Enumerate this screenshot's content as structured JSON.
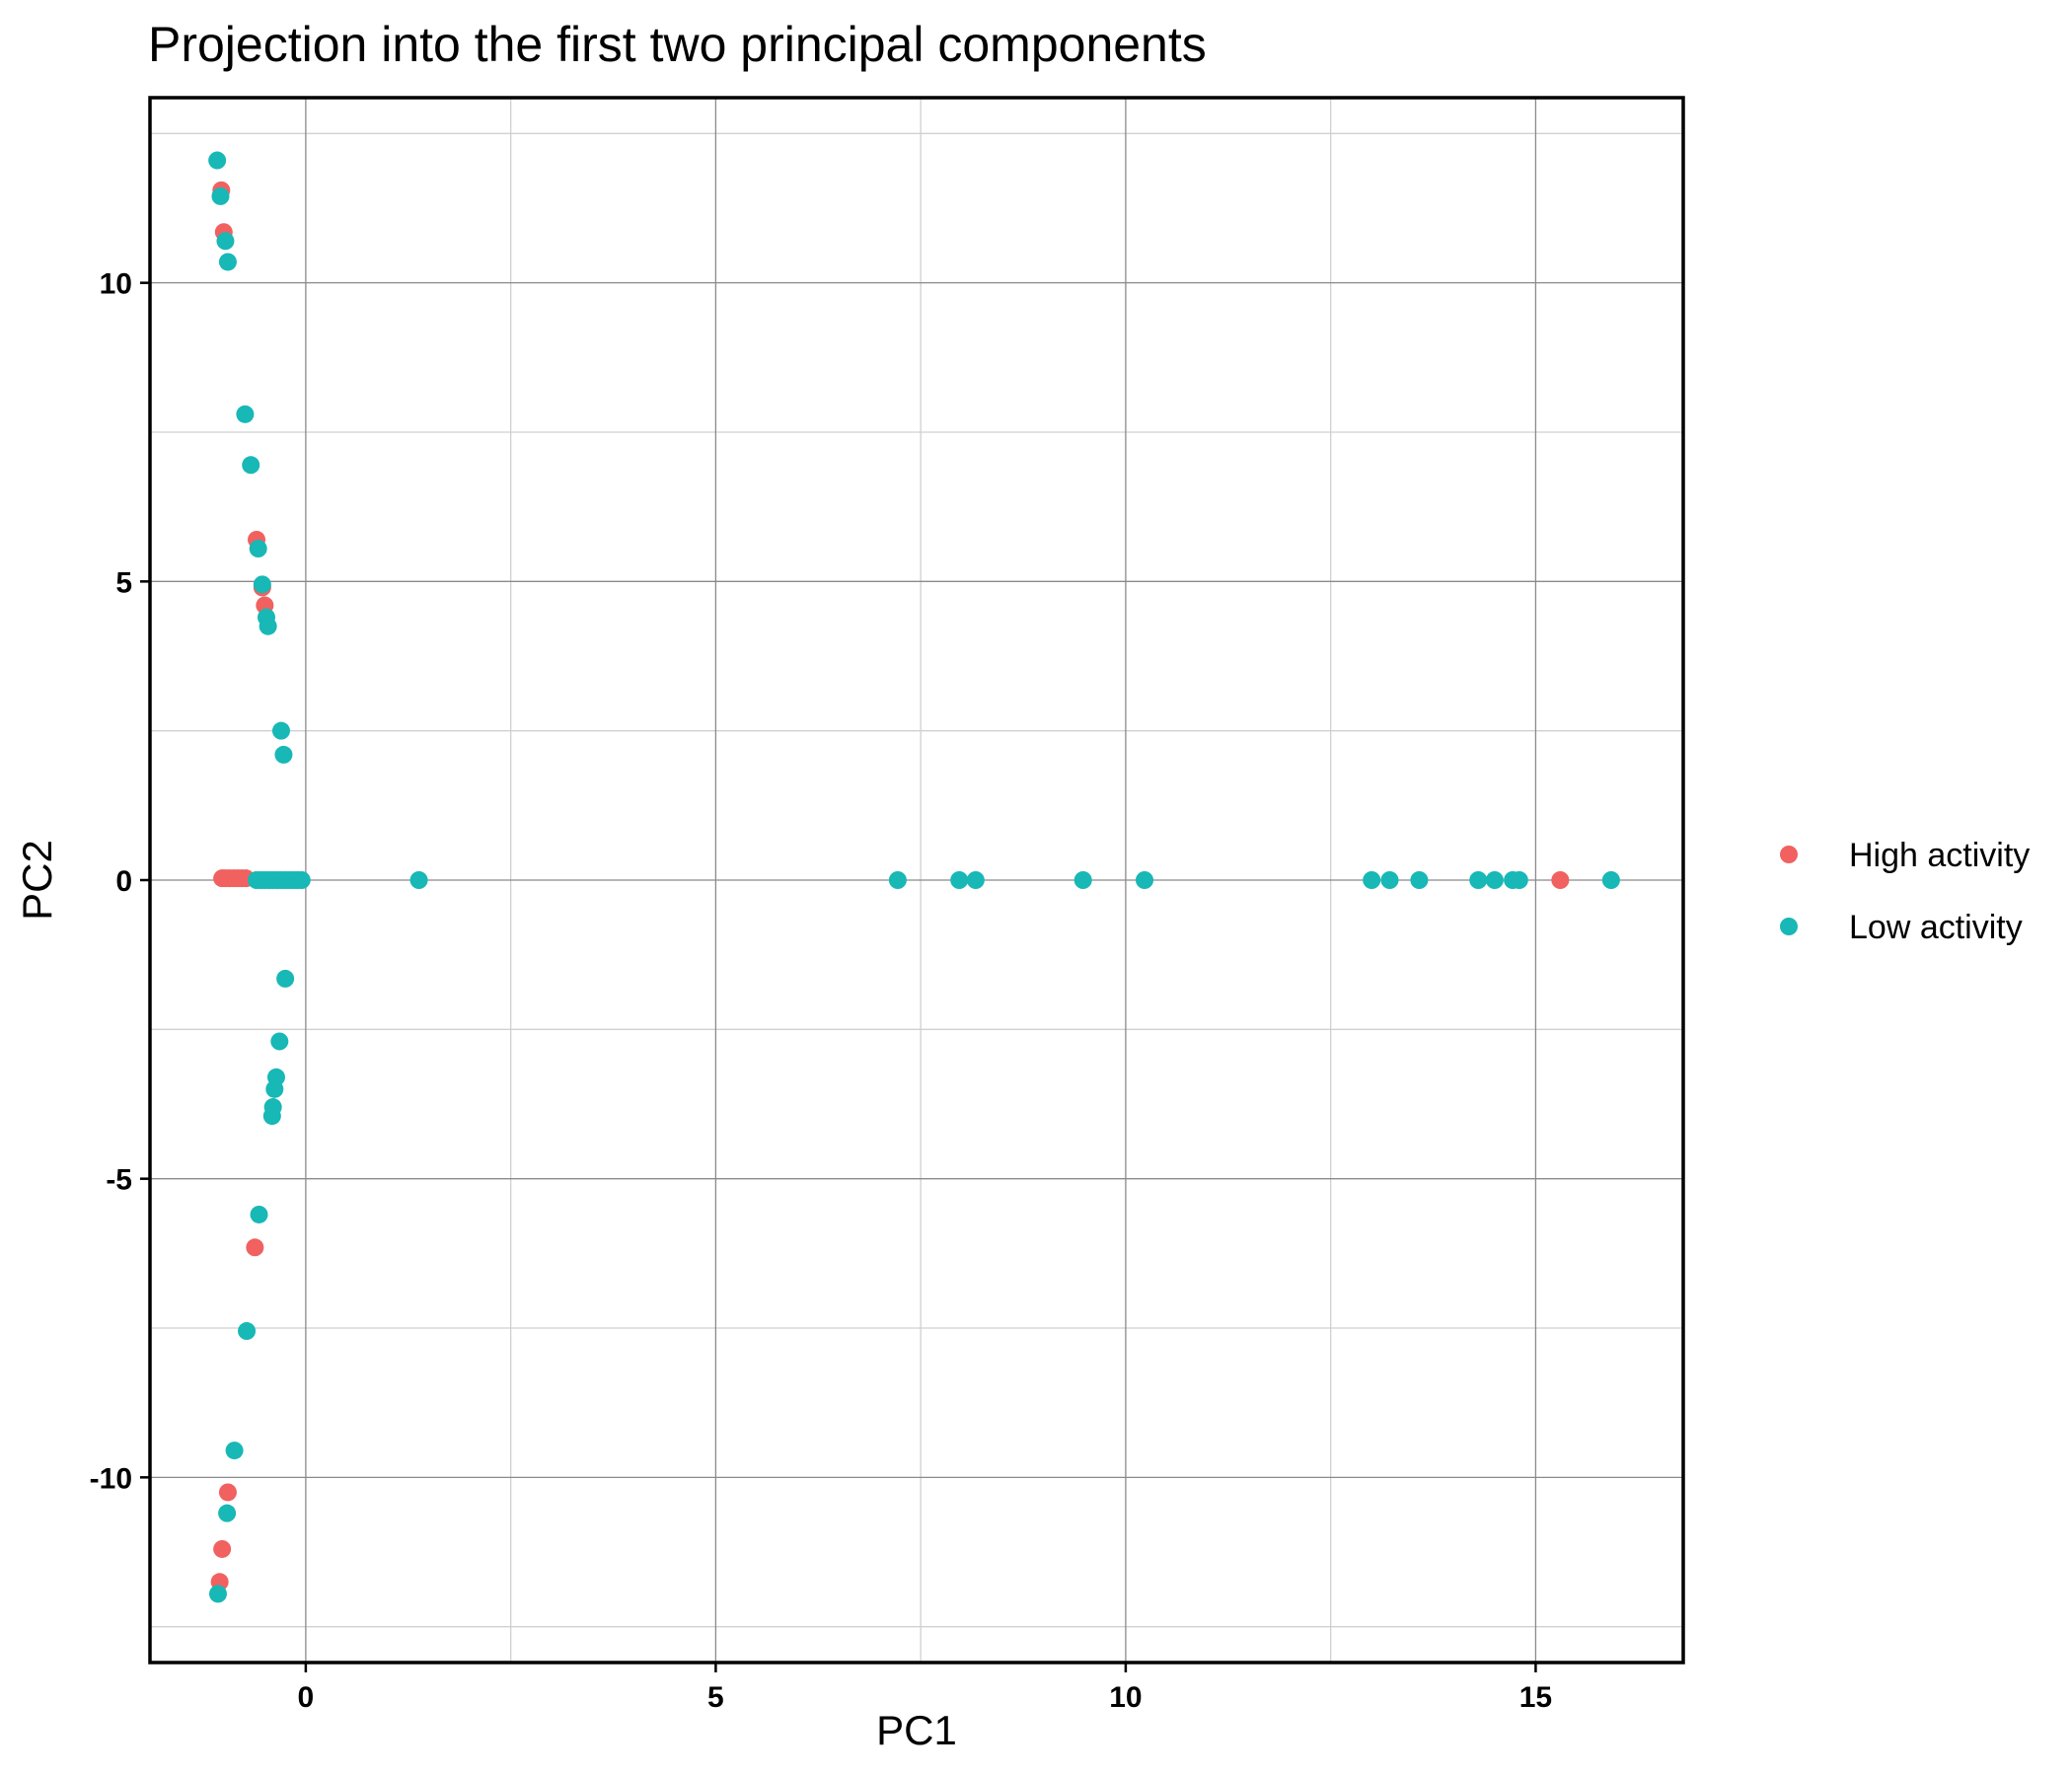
{
  "chart_data": {
    "type": "scatter",
    "title": "Projection into the first two principal components",
    "xlabel": "PC1",
    "ylabel": "PC2",
    "xlim": [
      -1.9,
      16.8
    ],
    "ylim": [
      -13.1,
      13.1
    ],
    "xticks": [
      0,
      5,
      10,
      15
    ],
    "xtick_labels": [
      "0",
      "5",
      "10",
      "15"
    ],
    "yticks": [
      -10,
      -5,
      0,
      5,
      10
    ],
    "ytick_labels": [
      "-10",
      "-5",
      "0",
      "5",
      "10"
    ],
    "grid": true,
    "legend_position": "right",
    "series": [
      {
        "name": "High activity",
        "color": "#F0615F",
        "points": [
          [
            -1.03,
            11.55
          ],
          [
            -1.0,
            10.85
          ],
          [
            -0.6,
            5.7
          ],
          [
            -0.53,
            4.9
          ],
          [
            -0.5,
            4.6
          ],
          [
            -1.02,
            0.03
          ],
          [
            -0.98,
            0.03
          ],
          [
            -0.93,
            0.03
          ],
          [
            -0.88,
            0.03
          ],
          [
            -0.83,
            0.03
          ],
          [
            -0.78,
            0.03
          ],
          [
            -0.73,
            0.03
          ],
          [
            -0.62,
            -6.15
          ],
          [
            -0.95,
            -10.25
          ],
          [
            -1.02,
            -11.2
          ],
          [
            -1.05,
            -11.75
          ],
          [
            15.3,
            0.0
          ]
        ]
      },
      {
        "name": "Low activity",
        "color": "#17B8B6",
        "points": [
          [
            -1.08,
            12.05
          ],
          [
            -1.04,
            11.45
          ],
          [
            -0.98,
            10.7
          ],
          [
            -0.95,
            10.35
          ],
          [
            -0.74,
            7.8
          ],
          [
            -0.67,
            6.95
          ],
          [
            -0.58,
            5.55
          ],
          [
            -0.53,
            4.95
          ],
          [
            -0.48,
            4.4
          ],
          [
            -0.46,
            4.25
          ],
          [
            -0.3,
            2.5
          ],
          [
            -0.27,
            2.1
          ],
          [
            -0.6,
            0.0
          ],
          [
            -0.55,
            0.0
          ],
          [
            -0.5,
            0.0
          ],
          [
            -0.45,
            0.0
          ],
          [
            -0.4,
            0.0
          ],
          [
            -0.35,
            0.0
          ],
          [
            -0.3,
            0.0
          ],
          [
            -0.25,
            0.0
          ],
          [
            -0.2,
            0.0
          ],
          [
            -0.15,
            0.0
          ],
          [
            -0.1,
            0.0
          ],
          [
            -0.05,
            0.0
          ],
          [
            1.38,
            0.0
          ],
          [
            -0.25,
            -1.65
          ],
          [
            -0.32,
            -2.7
          ],
          [
            -0.36,
            -3.3
          ],
          [
            -0.38,
            -3.5
          ],
          [
            -0.4,
            -3.8
          ],
          [
            -0.41,
            -3.95
          ],
          [
            -0.57,
            -5.6
          ],
          [
            -0.72,
            -7.55
          ],
          [
            -0.87,
            -9.55
          ],
          [
            -0.96,
            -10.6
          ],
          [
            -1.07,
            -11.95
          ],
          [
            7.22,
            0.0
          ],
          [
            7.97,
            0.0
          ],
          [
            8.17,
            0.0
          ],
          [
            9.48,
            0.0
          ],
          [
            10.23,
            0.0
          ],
          [
            13.0,
            0.0
          ],
          [
            13.22,
            0.0
          ],
          [
            13.58,
            0.0
          ],
          [
            14.3,
            0.0
          ],
          [
            14.5,
            0.0
          ],
          [
            14.72,
            0.0
          ],
          [
            14.8,
            0.0
          ],
          [
            15.92,
            0.0
          ]
        ]
      }
    ]
  }
}
